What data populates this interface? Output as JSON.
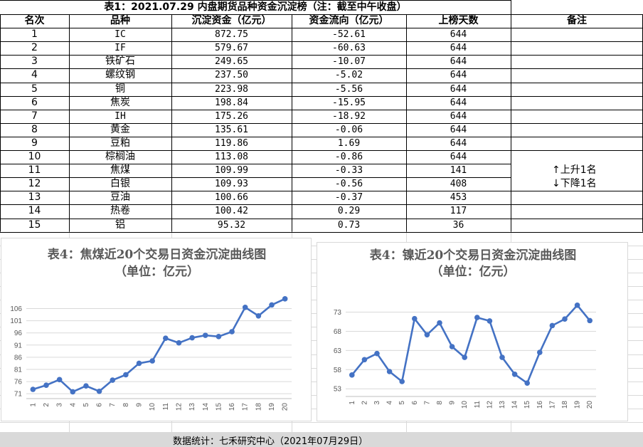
{
  "table": {
    "title": "表1：2021.07.29 内盘期货品种资金沉淀榜（注：截至中午收盘）",
    "headers": [
      "名次",
      "品种",
      "沉淀资金（亿元）",
      "资金流向（亿元）",
      "上榜天数",
      "备注"
    ],
    "rows": [
      {
        "rank": "1",
        "name": "IC",
        "fund": "872.75",
        "flow": "-52.61",
        "days": "644",
        "note": ""
      },
      {
        "rank": "2",
        "name": "IF",
        "fund": "579.67",
        "flow": "-60.63",
        "days": "644",
        "note": ""
      },
      {
        "rank": "3",
        "name": "铁矿石",
        "fund": "249.65",
        "flow": "-10.07",
        "days": "644",
        "note": ""
      },
      {
        "rank": "4",
        "name": "螺纹钢",
        "fund": "237.50",
        "flow": "-5.02",
        "days": "644",
        "note": ""
      },
      {
        "rank": "5",
        "name": "铜",
        "fund": "223.98",
        "flow": "-5.56",
        "days": "644",
        "note": ""
      },
      {
        "rank": "6",
        "name": "焦炭",
        "fund": "198.84",
        "flow": "-15.95",
        "days": "644",
        "note": ""
      },
      {
        "rank": "7",
        "name": "IH",
        "fund": "175.26",
        "flow": "-18.92",
        "days": "644",
        "note": ""
      },
      {
        "rank": "8",
        "name": "黄金",
        "fund": "135.61",
        "flow": "-0.06",
        "days": "644",
        "note": ""
      },
      {
        "rank": "9",
        "name": "豆粕",
        "fund": "119.86",
        "flow": "1.69",
        "days": "644",
        "note": ""
      },
      {
        "rank": "10",
        "name": "棕榈油",
        "fund": "113.08",
        "flow": "-0.86",
        "days": "644",
        "note": ""
      },
      {
        "rank": "11",
        "name": "焦煤",
        "fund": "109.99",
        "flow": "-0.33",
        "days": "141",
        "note": "↑上升1名"
      },
      {
        "rank": "12",
        "name": "白银",
        "fund": "109.93",
        "flow": "-0.56",
        "days": "408",
        "note": "↓下降1名"
      },
      {
        "rank": "13",
        "name": "豆油",
        "fund": "100.66",
        "flow": "-0.37",
        "days": "453",
        "note": ""
      },
      {
        "rank": "14",
        "name": "热卷",
        "fund": "100.42",
        "flow": "0.29",
        "days": "117",
        "note": ""
      },
      {
        "rank": "15",
        "name": "铝",
        "fund": "95.32",
        "flow": "0.73",
        "days": "36",
        "note": ""
      }
    ]
  },
  "footer": "数据统计：七禾研究中心（2021年07月29日）",
  "colors": {
    "line": "#4472c4",
    "grid": "#d9d9d9",
    "axis_text": "#595959",
    "footer_bg": "#d9d9d9"
  },
  "chart_data": [
    {
      "type": "line",
      "title": "表4：焦煤近20个交易日资金沉淀曲线图",
      "subtitle": "（单位：亿元）",
      "x": [
        1,
        2,
        3,
        4,
        5,
        6,
        7,
        8,
        9,
        10,
        11,
        12,
        13,
        14,
        15,
        16,
        17,
        18,
        19,
        20
      ],
      "values": [
        72.8,
        74.5,
        76.8,
        71.8,
        74.2,
        72.0,
        76.6,
        78.8,
        83.5,
        84.5,
        93.8,
        91.9,
        94.0,
        95.0,
        94.5,
        96.5,
        106.5,
        103.0,
        107.5,
        110.0
      ],
      "yticks": [
        71,
        76,
        81,
        86,
        91,
        96,
        101,
        106
      ],
      "ylim": [
        69,
        112
      ],
      "grid": true,
      "legend": "none"
    },
    {
      "type": "line",
      "title": "表4：镍近20个交易日资金沉淀曲线图",
      "subtitle": "（单位：亿元）",
      "x": [
        1,
        2,
        3,
        4,
        5,
        6,
        7,
        8,
        9,
        10,
        11,
        12,
        13,
        14,
        15,
        16,
        17,
        18,
        19,
        20
      ],
      "values": [
        56.6,
        60.6,
        62.2,
        57.5,
        54.9,
        71.3,
        67.1,
        70.2,
        64.0,
        61.2,
        71.6,
        70.7,
        61.2,
        56.8,
        54.5,
        62.5,
        69.5,
        71.2,
        74.8,
        70.8
      ],
      "yticks": [
        53,
        58,
        63,
        68,
        73
      ],
      "ylim": [
        51,
        77
      ],
      "grid": true,
      "legend": "none"
    }
  ]
}
